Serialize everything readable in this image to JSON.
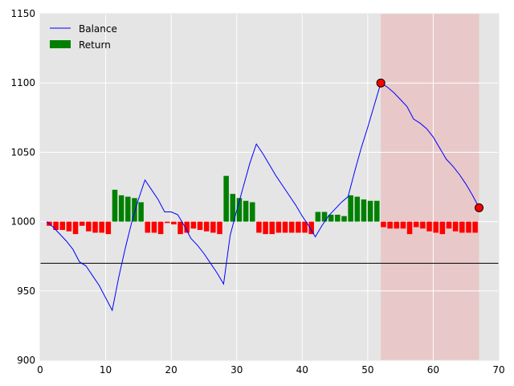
{
  "chart_data": {
    "type": "line",
    "xlim": [
      0,
      70
    ],
    "xticks": [
      0,
      10,
      20,
      30,
      40,
      50,
      60,
      70
    ],
    "ylim": [
      900,
      1150
    ],
    "yticks": [
      900,
      950,
      1000,
      1050,
      1100,
      1150
    ],
    "grid": true,
    "legend": "upper left",
    "shade": [
      52,
      67
    ],
    "shade_color": "#e8c8c8",
    "hline": 970,
    "hline_color": "#000000",
    "series": [
      {
        "name": "Balance",
        "type": "line",
        "color": "#0000ff",
        "x": [
          1,
          2,
          3,
          4,
          5,
          6,
          7,
          8,
          9,
          10,
          11,
          12,
          13,
          14,
          15,
          16,
          17,
          18,
          19,
          20,
          21,
          22,
          23,
          24,
          25,
          26,
          27,
          28,
          29,
          30,
          31,
          32,
          33,
          34,
          35,
          36,
          37,
          38,
          39,
          40,
          41,
          42,
          43,
          44,
          45,
          46,
          47,
          48,
          49,
          50,
          51,
          52,
          53,
          54,
          55,
          56,
          57,
          58,
          59,
          60,
          61,
          62,
          63,
          64,
          65,
          66,
          67
        ],
        "values": [
          1000,
          996,
          991,
          986,
          980,
          971,
          968,
          961,
          954,
          945,
          936,
          960,
          981,
          1000,
          1016,
          1030,
          1023,
          1016,
          1007,
          1007,
          1005,
          997,
          988,
          983,
          977,
          970,
          963,
          955,
          990,
          1008,
          1025,
          1042,
          1056,
          1049,
          1041,
          1033,
          1026,
          1019,
          1012,
          1004,
          997,
          989,
          997,
          1004,
          1009,
          1014,
          1018,
          1036,
          1053,
          1068,
          1084,
          1100,
          1097,
          1093,
          1088,
          1083,
          1074,
          1071,
          1067,
          1061,
          1053,
          1045,
          1040,
          1034,
          1027,
          1019,
          1010
        ]
      },
      {
        "name": "Return",
        "type": "bar",
        "color": "#008000",
        "negative_color": "#ff0000",
        "base": 1000,
        "width": 0.8,
        "x": [
          1,
          2,
          3,
          4,
          5,
          6,
          7,
          8,
          9,
          10,
          11,
          12,
          13,
          14,
          15,
          16,
          17,
          18,
          19,
          20,
          21,
          22,
          23,
          24,
          25,
          26,
          27,
          28,
          29,
          30,
          31,
          32,
          33,
          34,
          35,
          36,
          37,
          38,
          39,
          40,
          41,
          42,
          43,
          44,
          45,
          46,
          47,
          48,
          49,
          50,
          51,
          52,
          53,
          54,
          55,
          56,
          57,
          58,
          59,
          60,
          61,
          62,
          63,
          64,
          65,
          66
        ],
        "values": [
          -3,
          -6,
          -6,
          -7,
          -9,
          -3,
          -7,
          -8,
          -8,
          -9,
          23,
          19,
          18,
          17,
          14,
          -8,
          -8,
          -9,
          -1,
          -2,
          -9,
          -8,
          -5,
          -6,
          -7,
          -8,
          -9,
          33,
          20,
          17,
          15,
          14,
          -8,
          -9,
          -9,
          -8,
          -8,
          -8,
          -8,
          -8,
          -9,
          7,
          7,
          5,
          5,
          4,
          19,
          18,
          16,
          15,
          15,
          -4,
          -5,
          -5,
          -5,
          -9,
          -4,
          -5,
          -7,
          -8,
          -9,
          -5,
          -7,
          -8,
          -8,
          -8
        ]
      }
    ],
    "points": {
      "x": [
        52,
        67
      ],
      "values": [
        1100,
        1010
      ],
      "color": "#ff0000"
    }
  }
}
